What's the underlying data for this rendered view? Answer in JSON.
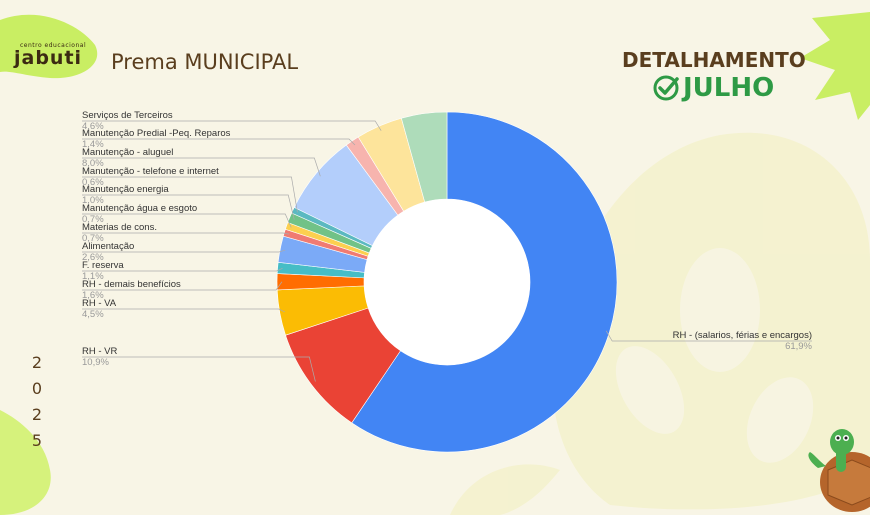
{
  "header": {
    "logo_small": "centro educacional",
    "logo_big": "jabuti",
    "title": "Prema MUNICIPAL",
    "detail_label": "DETALHAMENTO",
    "month_label": "JULHO"
  },
  "year_digits": [
    "2",
    "0",
    "2",
    "5"
  ],
  "icons": {
    "check": "check-circle-icon",
    "turtle": "turtle-icon"
  },
  "colors": {
    "background": "#f8f5e6",
    "accent_green": "#2e9a45",
    "title_brown": "#5a3e1e",
    "leaf_green": "#c9ee63"
  },
  "chart_data": {
    "type": "pie",
    "donut": true,
    "title": "",
    "slices": [
      {
        "label": "RH - (salarios, férias e encargos)",
        "value": 61.9,
        "pct_label": "61,9%",
        "color": "#4285f4"
      },
      {
        "label": "RH - VR",
        "value": 10.9,
        "pct_label": "10,9%",
        "color": "#ea4335"
      },
      {
        "label": "RH - VA",
        "value": 4.5,
        "pct_label": "4,5%",
        "color": "#fbbc04"
      },
      {
        "label": "RH - demais benefícios",
        "value": 1.6,
        "pct_label": "1,6%",
        "color": "#ff6d01"
      },
      {
        "label": "F. reserva",
        "value": 1.1,
        "pct_label": "1,1%",
        "color": "#46bdc6"
      },
      {
        "label": "Alimentação",
        "value": 2.6,
        "pct_label": "2,6%",
        "color": "#7baaf7"
      },
      {
        "label": "Materias de cons.",
        "value": 0.7,
        "pct_label": "0,7%",
        "color": "#f07b72"
      },
      {
        "label": "Manutenção água e esgoto",
        "value": 0.7,
        "pct_label": "0,7%",
        "color": "#fcd04f"
      },
      {
        "label": "Manutenção energia",
        "value": 1.0,
        "pct_label": "1,0%",
        "color": "#71c287"
      },
      {
        "label": "Manutenção - telefone e internet",
        "value": 0.6,
        "pct_label": "0,6%",
        "color": "#5bb9c1"
      },
      {
        "label": "Manutenção - aluguel",
        "value": 8.0,
        "pct_label": "8,0%",
        "color": "#b3cefb"
      },
      {
        "label": "Manutenção Predial -Peq. Reparos",
        "value": 1.4,
        "pct_label": "1,4%",
        "color": "#f7b4ae"
      },
      {
        "label": "Serviços de Terceiros",
        "value": 4.6,
        "pct_label": "4,6%",
        "color": "#fde49b"
      },
      {
        "label": "",
        "value": 0.0,
        "pct_label": "",
        "color": "#fde49b"
      }
    ],
    "extra_slice": {
      "value": 4.5,
      "color": "#aedcba"
    }
  }
}
